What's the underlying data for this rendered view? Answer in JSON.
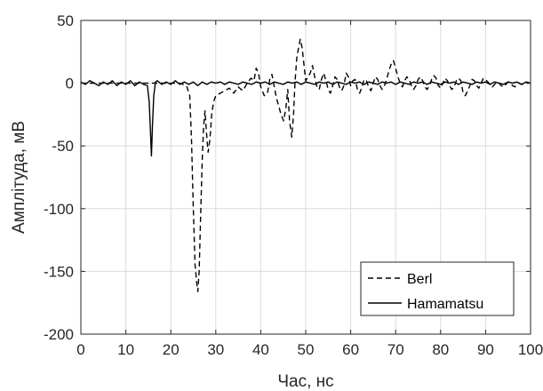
{
  "chart_data": {
    "type": "line",
    "xlabel": "Час, нс",
    "ylabel": "Амплітуда, мВ",
    "xlim": [
      0,
      100
    ],
    "ylim": [
      -200,
      50
    ],
    "xticks": [
      0,
      10,
      20,
      30,
      40,
      50,
      60,
      70,
      80,
      90,
      100
    ],
    "yticks": [
      50,
      0,
      -50,
      -100,
      -150,
      -200
    ],
    "grid": true,
    "legend_position": "bottom-right",
    "series": [
      {
        "name": "Berl",
        "style": "dashed",
        "color": "#000000",
        "points": [
          [
            0,
            0
          ],
          [
            4,
            0
          ],
          [
            8,
            0
          ],
          [
            12,
            0
          ],
          [
            16,
            0
          ],
          [
            20,
            0
          ],
          [
            22,
            0
          ],
          [
            23.5,
            -2
          ],
          [
            24.2,
            -10
          ],
          [
            24.6,
            -45
          ],
          [
            25.0,
            -100
          ],
          [
            25.4,
            -145
          ],
          [
            25.8,
            -160
          ],
          [
            26.0,
            -166
          ],
          [
            26.3,
            -150
          ],
          [
            26.6,
            -110
          ],
          [
            27.0,
            -60
          ],
          [
            27.3,
            -35
          ],
          [
            27.6,
            -22
          ],
          [
            27.9,
            -38
          ],
          [
            28.3,
            -55
          ],
          [
            28.7,
            -45
          ],
          [
            29.1,
            -25
          ],
          [
            29.5,
            -15
          ],
          [
            30,
            -10
          ],
          [
            31,
            -8
          ],
          [
            32,
            -6
          ],
          [
            33,
            -4
          ],
          [
            34,
            -8
          ],
          [
            35,
            -3
          ],
          [
            36,
            -6
          ],
          [
            37,
            0
          ],
          [
            37.8,
            4
          ],
          [
            38.5,
            2
          ],
          [
            39,
            12
          ],
          [
            39.5,
            8
          ],
          [
            40,
            -3
          ],
          [
            40.8,
            -10
          ],
          [
            41.5,
            -8
          ],
          [
            42,
            3
          ],
          [
            42.5,
            7
          ],
          [
            43,
            -3
          ],
          [
            43.5,
            -12
          ],
          [
            44,
            -18
          ],
          [
            44.5,
            -25
          ],
          [
            45.1,
            -30
          ],
          [
            45.6,
            -20
          ],
          [
            46.0,
            -5
          ],
          [
            46.4,
            -30
          ],
          [
            46.9,
            -43
          ],
          [
            47.3,
            -25
          ],
          [
            47.6,
            0
          ],
          [
            48.0,
            20
          ],
          [
            48.5,
            30
          ],
          [
            48.8,
            35
          ],
          [
            49.2,
            28
          ],
          [
            49.6,
            15
          ],
          [
            50.0,
            2
          ],
          [
            50.5,
            5
          ],
          [
            51,
            8
          ],
          [
            51.5,
            14
          ],
          [
            52,
            5
          ],
          [
            52.5,
            -3
          ],
          [
            53,
            -5
          ],
          [
            53.5,
            3
          ],
          [
            54,
            8
          ],
          [
            54.5,
            2
          ],
          [
            55,
            -5
          ],
          [
            55.5,
            -8
          ],
          [
            56,
            -2
          ],
          [
            56.5,
            5
          ],
          [
            57,
            3
          ],
          [
            57.5,
            -3
          ],
          [
            58,
            -6
          ],
          [
            58.5,
            -2
          ],
          [
            59,
            8
          ],
          [
            59.5,
            5
          ],
          [
            60,
            -2
          ],
          [
            60.5,
            2
          ],
          [
            61,
            3
          ],
          [
            61.5,
            -5
          ],
          [
            62,
            -8
          ],
          [
            62.5,
            -3
          ],
          [
            63,
            3
          ],
          [
            63.5,
            2
          ],
          [
            64,
            -3
          ],
          [
            64.5,
            -6
          ],
          [
            65,
            0
          ],
          [
            65.5,
            5
          ],
          [
            66,
            3
          ],
          [
            66.5,
            -2
          ],
          [
            67,
            -5
          ],
          [
            67.5,
            -2
          ],
          [
            68,
            3
          ],
          [
            68.5,
            10
          ],
          [
            69,
            15
          ],
          [
            69.5,
            18
          ],
          [
            70,
            12
          ],
          [
            70.5,
            5
          ],
          [
            71,
            0
          ],
          [
            71.5,
            -3
          ],
          [
            72,
            2
          ],
          [
            72.5,
            5
          ],
          [
            73,
            3
          ],
          [
            73.5,
            -2
          ],
          [
            74,
            -5
          ],
          [
            74.5,
            -2
          ],
          [
            75,
            3
          ],
          [
            75.5,
            5
          ],
          [
            76,
            2
          ],
          [
            76.5,
            -3
          ],
          [
            77,
            -5
          ],
          [
            77.5,
            -2
          ],
          [
            78,
            3
          ],
          [
            78.5,
            6
          ],
          [
            79,
            4
          ],
          [
            79.5,
            -2
          ],
          [
            80,
            -4
          ],
          [
            80.5,
            0
          ],
          [
            81,
            4
          ],
          [
            81.5,
            2
          ],
          [
            82,
            -2
          ],
          [
            82.5,
            -5
          ],
          [
            83,
            -3
          ],
          [
            83.5,
            2
          ],
          [
            84,
            4
          ],
          [
            84.5,
            2
          ],
          [
            85,
            -8
          ],
          [
            85.5,
            -10
          ],
          [
            86,
            -6
          ],
          [
            86.5,
            -2
          ],
          [
            87,
            3
          ],
          [
            87.5,
            2
          ],
          [
            88,
            -2
          ],
          [
            88.5,
            -4
          ],
          [
            89,
            0
          ],
          [
            89.5,
            4
          ],
          [
            90,
            3
          ],
          [
            90.5,
            1
          ],
          [
            91,
            -1
          ],
          [
            91.5,
            -3
          ],
          [
            92,
            -1
          ],
          [
            92.5,
            1
          ],
          [
            93,
            0
          ],
          [
            93.5,
            -2
          ],
          [
            94,
            -3
          ],
          [
            94.5,
            -1
          ],
          [
            95,
            1
          ],
          [
            95.5,
            0
          ],
          [
            96,
            -2
          ],
          [
            96.5,
            -3
          ],
          [
            97,
            -1
          ],
          [
            97.5,
            0
          ],
          [
            98,
            -1
          ],
          [
            99,
            0
          ],
          [
            100,
            0
          ]
        ]
      },
      {
        "name": "Hamamatsu",
        "style": "solid",
        "color": "#000000",
        "points": [
          [
            0,
            1
          ],
          [
            1,
            -1
          ],
          [
            2,
            2
          ],
          [
            3,
            0
          ],
          [
            4,
            -2
          ],
          [
            5,
            1
          ],
          [
            6,
            -1
          ],
          [
            7,
            2
          ],
          [
            8,
            -2
          ],
          [
            9,
            1
          ],
          [
            10,
            -1
          ],
          [
            11,
            2
          ],
          [
            12,
            -2
          ],
          [
            13,
            1
          ],
          [
            14,
            -1
          ],
          [
            14.8,
            -2
          ],
          [
            15.2,
            -15
          ],
          [
            15.5,
            -40
          ],
          [
            15.7,
            -58
          ],
          [
            15.9,
            -35
          ],
          [
            16.2,
            -10
          ],
          [
            16.6,
            1
          ],
          [
            17,
            2
          ],
          [
            18,
            -1
          ],
          [
            19,
            1
          ],
          [
            20,
            -1
          ],
          [
            21,
            2
          ],
          [
            22,
            -1
          ],
          [
            23,
            1
          ],
          [
            24,
            -1
          ],
          [
            25,
            1
          ],
          [
            26,
            -2
          ],
          [
            27,
            1
          ],
          [
            28,
            -1
          ],
          [
            29,
            1
          ],
          [
            30,
            0
          ],
          [
            31,
            1
          ],
          [
            32,
            -1
          ],
          [
            33,
            1
          ],
          [
            34,
            0
          ],
          [
            35,
            -1
          ],
          [
            36,
            1
          ],
          [
            37,
            0
          ],
          [
            38,
            -1
          ],
          [
            39,
            1
          ],
          [
            40,
            0
          ],
          [
            41,
            1
          ],
          [
            42,
            -1
          ],
          [
            43,
            1
          ],
          [
            44,
            0
          ],
          [
            45,
            -1
          ],
          [
            46,
            1
          ],
          [
            47,
            0
          ],
          [
            48,
            1
          ],
          [
            49,
            -1
          ],
          [
            50,
            1
          ],
          [
            51,
            0
          ],
          [
            52,
            -1
          ],
          [
            53,
            1
          ],
          [
            54,
            0
          ],
          [
            55,
            1
          ],
          [
            56,
            -1
          ],
          [
            57,
            1
          ],
          [
            58,
            0
          ],
          [
            59,
            -1
          ],
          [
            60,
            1
          ],
          [
            61,
            0
          ],
          [
            62,
            1
          ],
          [
            63,
            -1
          ],
          [
            64,
            1
          ],
          [
            65,
            0
          ],
          [
            66,
            -1
          ],
          [
            67,
            1
          ],
          [
            68,
            0
          ],
          [
            69,
            1
          ],
          [
            70,
            -1
          ],
          [
            71,
            1
          ],
          [
            72,
            0
          ],
          [
            73,
            -1
          ],
          [
            74,
            1
          ],
          [
            75,
            0
          ],
          [
            76,
            1
          ],
          [
            77,
            -1
          ],
          [
            78,
            1
          ],
          [
            79,
            0
          ],
          [
            80,
            -1
          ],
          [
            81,
            1
          ],
          [
            82,
            0
          ],
          [
            83,
            1
          ],
          [
            84,
            -1
          ],
          [
            85,
            1
          ],
          [
            86,
            0
          ],
          [
            87,
            -1
          ],
          [
            88,
            1
          ],
          [
            89,
            0
          ],
          [
            90,
            1
          ],
          [
            91,
            -1
          ],
          [
            92,
            1
          ],
          [
            93,
            0
          ],
          [
            94,
            -1
          ],
          [
            95,
            1
          ],
          [
            96,
            0
          ],
          [
            97,
            1
          ],
          [
            98,
            -1
          ],
          [
            99,
            1
          ],
          [
            100,
            0
          ]
        ]
      }
    ]
  }
}
